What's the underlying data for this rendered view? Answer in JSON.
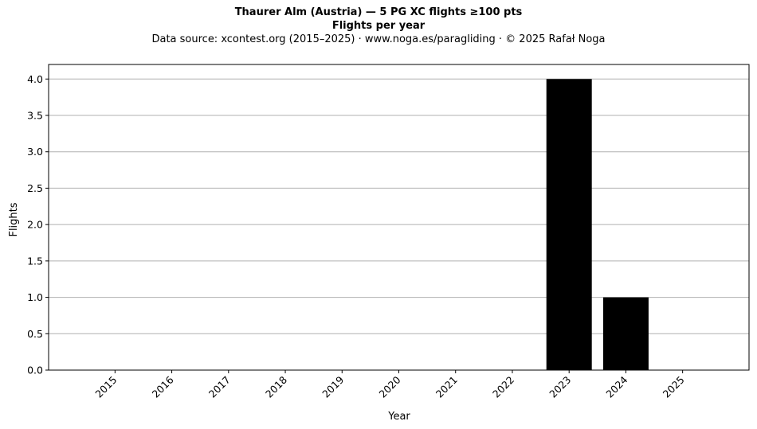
{
  "chart_data": {
    "type": "bar",
    "title": "Thaurer Alm (Austria)  —  5 PG XC flights ≥100 pts",
    "subtitle": "Flights per year",
    "source_note": "Data source: xcontest.org (2015–2025)  ·  www.noga.es/paragliding  ·  © 2025 Rafał Noga",
    "xlabel": "Year",
    "ylabel": "Flights",
    "categories": [
      "2015",
      "2016",
      "2017",
      "2018",
      "2019",
      "2020",
      "2021",
      "2022",
      "2023",
      "2024",
      "2025"
    ],
    "values": [
      0,
      0,
      0,
      0,
      0,
      0,
      0,
      0,
      4,
      1,
      0
    ],
    "ylim": [
      0,
      4.2
    ],
    "yticks": [
      "0.0",
      "0.5",
      "1.0",
      "1.5",
      "2.0",
      "2.5",
      "3.0",
      "3.5",
      "4.0"
    ],
    "grid": "y-major",
    "bar_color": "#000000",
    "grid_color": "#b0b0b0"
  }
}
